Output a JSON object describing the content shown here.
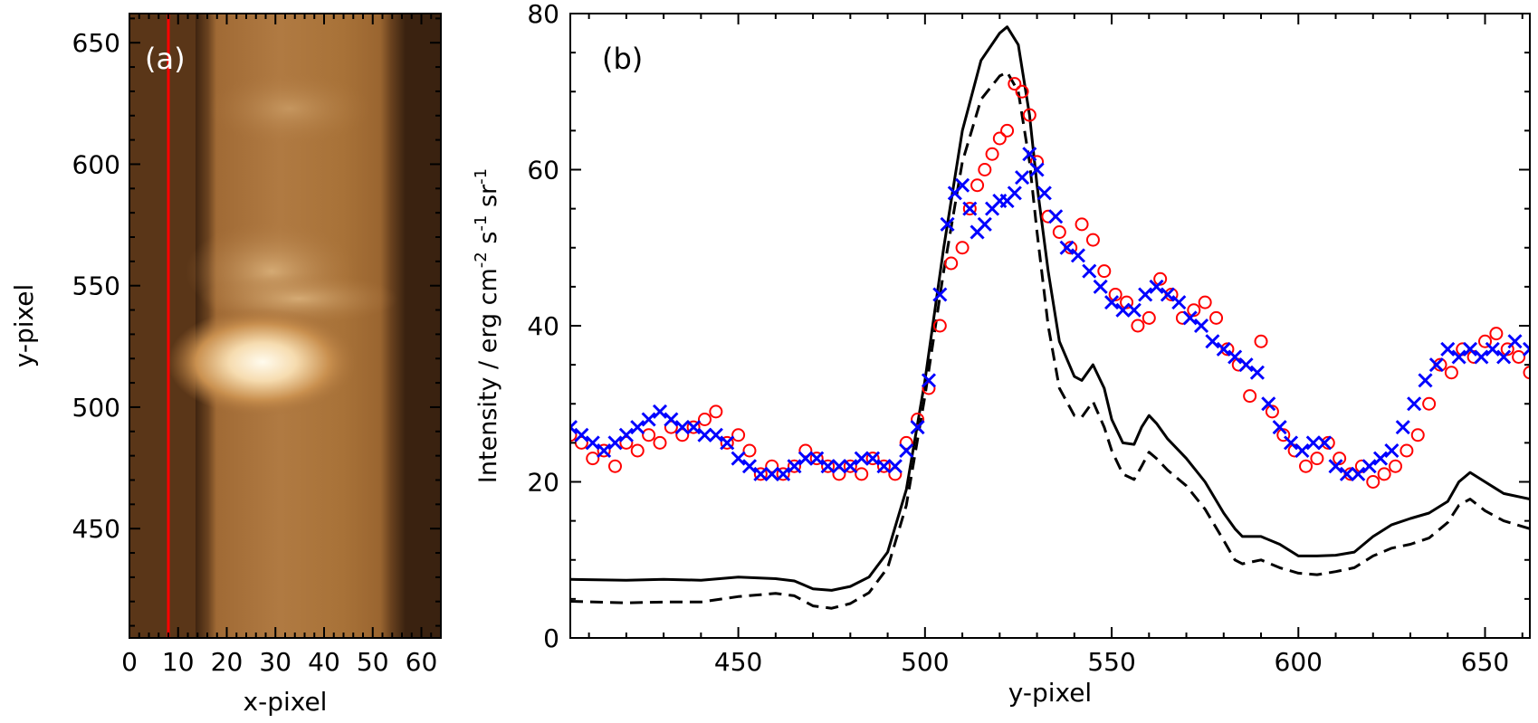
{
  "chart_data": [
    {
      "type": "heatmap",
      "panel_label": "(a)",
      "xlabel": "x-pixel",
      "ylabel": "y-pixel",
      "xlim": [
        0,
        64
      ],
      "ylim": [
        405,
        662
      ],
      "xticks": [
        0,
        10,
        20,
        30,
        40,
        50,
        60
      ],
      "yticks": [
        450,
        500,
        550,
        600,
        650
      ],
      "colormap": "brown (afmhot-like)",
      "slit_x": 8,
      "bright_kernel": {
        "x": 30,
        "y": 520
      }
    },
    {
      "type": "line",
      "panel_label": "(b)",
      "xlabel": "y-pixel",
      "ylabel": "Intensity / erg cm",
      "ylabel_exp1": "-2",
      "ylabel_mid1": " s",
      "ylabel_exp2": "-1",
      "ylabel_mid2": " sr",
      "ylabel_exp3": "-1",
      "xlim": [
        405,
        662
      ],
      "ylim": [
        0,
        80
      ],
      "xticks": [
        450,
        500,
        550,
        600,
        650
      ],
      "yticks": [
        0,
        20,
        40,
        60,
        80
      ],
      "series": [
        {
          "name": "solid",
          "style": "solid",
          "color": "#000000",
          "x": [
            405,
            420,
            430,
            440,
            450,
            460,
            465,
            470,
            475,
            480,
            485,
            490,
            495,
            500,
            505,
            510,
            515,
            520,
            522,
            525,
            528,
            530,
            533,
            536,
            540,
            542,
            545,
            548,
            550,
            553,
            556,
            558,
            560,
            562,
            565,
            570,
            575,
            580,
            583,
            585,
            590,
            595,
            600,
            605,
            610,
            615,
            620,
            625,
            630,
            635,
            640,
            643,
            646,
            650,
            655,
            662
          ],
          "y": [
            7.5,
            7.4,
            7.5,
            7.4,
            7.8,
            7.6,
            7.3,
            6.3,
            6.1,
            6.6,
            7.8,
            11,
            19,
            33,
            50,
            65,
            74,
            77.5,
            78.3,
            76,
            67,
            58,
            47,
            38,
            33.5,
            33,
            35,
            32,
            28,
            25,
            24.8,
            27,
            28.5,
            27.5,
            25.5,
            23,
            20,
            16,
            14,
            13,
            13,
            12,
            10.5,
            10.5,
            10.6,
            11,
            13,
            14.5,
            15.3,
            16,
            17.5,
            20,
            21.2,
            20,
            18.5,
            17.8
          ]
        },
        {
          "name": "dashed",
          "style": "dashed",
          "color": "#000000",
          "x": [
            405,
            420,
            430,
            440,
            450,
            460,
            465,
            470,
            475,
            480,
            485,
            490,
            495,
            500,
            505,
            510,
            515,
            520,
            522,
            525,
            528,
            530,
            533,
            536,
            540,
            542,
            545,
            548,
            550,
            553,
            556,
            558,
            560,
            562,
            565,
            570,
            575,
            580,
            583,
            585,
            590,
            595,
            600,
            605,
            610,
            615,
            620,
            625,
            630,
            635,
            640,
            643,
            646,
            650,
            655,
            662
          ],
          "y": [
            4.7,
            4.5,
            4.6,
            4.6,
            5.3,
            5.7,
            5.4,
            4.1,
            3.8,
            4.4,
            5.8,
            9,
            17,
            31,
            47,
            61,
            69,
            72,
            72.5,
            70,
            61,
            52,
            40,
            32,
            28.5,
            28.3,
            30.3,
            27,
            24,
            21,
            20.3,
            22,
            23.8,
            23,
            21.5,
            19.5,
            16.5,
            12.5,
            10,
            9.5,
            10,
            9,
            8.3,
            8.1,
            8.5,
            9,
            10.5,
            11.5,
            12,
            12.8,
            14.8,
            17,
            17.8,
            16.3,
            15,
            14
          ]
        },
        {
          "name": "circles",
          "style": "marker-o",
          "color": "#ff0000",
          "x": [
            405,
            408,
            411,
            414,
            417,
            420,
            423,
            426,
            429,
            432,
            435,
            438,
            441,
            444,
            447,
            450,
            453,
            456,
            459,
            462,
            465,
            468,
            471,
            474,
            477,
            480,
            483,
            486,
            489,
            492,
            495,
            498,
            501,
            504,
            507,
            510,
            512,
            514,
            516,
            518,
            520,
            522,
            524,
            526,
            528,
            530,
            533,
            536,
            539,
            542,
            545,
            548,
            551,
            554,
            557,
            560,
            563,
            566,
            569,
            572,
            575,
            578,
            581,
            584,
            587,
            590,
            593,
            596,
            599,
            602,
            605,
            608,
            611,
            614,
            617,
            620,
            623,
            626,
            629,
            632,
            635,
            638,
            641,
            644,
            647,
            650,
            653,
            656,
            659,
            662
          ],
          "y": [
            26,
            25,
            23,
            24,
            22,
            25,
            24,
            26,
            25,
            27,
            26,
            27,
            28,
            29,
            25,
            26,
            24,
            21,
            22,
            21,
            22,
            24,
            23,
            22,
            21,
            22,
            21,
            23,
            22,
            21,
            25,
            28,
            32,
            40,
            48,
            50,
            55,
            58,
            60,
            62,
            64,
            65,
            71,
            70,
            67,
            61,
            54,
            52,
            50,
            53,
            51,
            47,
            44,
            43,
            40,
            41,
            46,
            44,
            41,
            42,
            43,
            41,
            37,
            35,
            31,
            38,
            29,
            26,
            24,
            22,
            23,
            25,
            23,
            21,
            22,
            20,
            21,
            22,
            24,
            26,
            30,
            35,
            34,
            37,
            36,
            38,
            39,
            37,
            36,
            34
          ]
        },
        {
          "name": "crosses",
          "style": "marker-x",
          "color": "#0000ff",
          "x": [
            405,
            408,
            411,
            414,
            417,
            420,
            423,
            426,
            429,
            432,
            435,
            438,
            441,
            444,
            447,
            450,
            453,
            456,
            459,
            462,
            465,
            468,
            471,
            474,
            477,
            480,
            483,
            486,
            489,
            492,
            495,
            498,
            501,
            504,
            506,
            508,
            510,
            512,
            514,
            516,
            518,
            520,
            522,
            524,
            526,
            528,
            530,
            532,
            535,
            538,
            541,
            544,
            547,
            550,
            553,
            556,
            559,
            562,
            565,
            568,
            571,
            574,
            577,
            580,
            583,
            586,
            589,
            592,
            595,
            598,
            601,
            604,
            607,
            610,
            613,
            616,
            619,
            622,
            625,
            628,
            631,
            634,
            637,
            640,
            643,
            646,
            649,
            652,
            655,
            658,
            662
          ],
          "y": [
            27,
            26,
            25,
            24,
            25,
            26,
            27,
            28,
            29,
            28,
            27,
            27,
            26,
            26,
            25,
            23,
            22,
            21,
            21,
            21,
            22,
            23,
            23,
            22,
            22,
            22,
            23,
            23,
            22,
            22,
            24,
            27,
            33,
            44,
            53,
            57,
            58,
            55,
            52,
            53,
            55,
            56,
            56,
            57,
            59,
            62,
            60,
            57,
            54,
            50,
            49,
            47,
            45,
            43,
            42,
            42,
            44,
            45,
            44,
            43,
            41,
            40,
            38,
            37,
            36,
            35,
            34,
            30,
            27,
            25,
            24,
            25,
            25,
            22,
            21,
            21,
            22,
            23,
            24,
            27,
            30,
            33,
            35,
            37,
            36,
            37,
            36,
            37,
            36,
            38,
            37
          ]
        }
      ]
    }
  ]
}
